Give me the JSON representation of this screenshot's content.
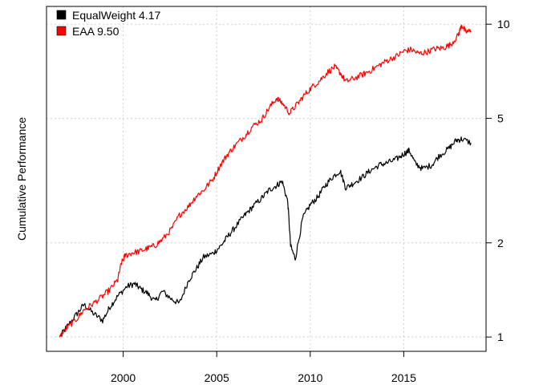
{
  "chart_data": {
    "type": "line",
    "ylabel": "Cumulative Performance",
    "xlabel": "",
    "title": "",
    "y_scale": "log",
    "xlim": [
      1995.9,
      2019.4
    ],
    "ylim": [
      0.9,
      11.4
    ],
    "x_ticks": [
      2000,
      2005,
      2010,
      2015
    ],
    "x_tick_labels": [
      "2000",
      "2005",
      "2010",
      "2015"
    ],
    "y_ticks": [
      1,
      2,
      5,
      10
    ],
    "y_tick_labels": [
      "1",
      "2",
      "5",
      "10"
    ],
    "y_axis_side": "right",
    "grid": true,
    "legend_position": "top-left",
    "series": [
      {
        "name": "EqualWeight",
        "legend_label": "EqualWeight 4.17",
        "color": "#000000",
        "final_value": 4.17,
        "x": [
          1996.6,
          1997.0,
          1997.5,
          1997.9,
          1998.4,
          1998.9,
          1999.3,
          1999.7,
          2000.2,
          2000.6,
          2000.9,
          2001.3,
          2001.7,
          2002.1,
          2002.6,
          2003.0,
          2003.5,
          2003.9,
          2004.3,
          2004.8,
          2005.2,
          2005.6,
          2006.0,
          2006.5,
          2006.9,
          2007.4,
          2007.8,
          2008.2,
          2008.5,
          2008.8,
          2008.95,
          2009.2,
          2009.6,
          2010.0,
          2010.4,
          2010.8,
          2011.2,
          2011.6,
          2011.9,
          2012.3,
          2012.8,
          2013.2,
          2013.7,
          2014.1,
          2014.6,
          2015.0,
          2015.3,
          2015.6,
          2016.0,
          2016.5,
          2016.9,
          2017.4,
          2017.8,
          2018.1,
          2018.6
        ],
        "y": [
          1.0,
          1.08,
          1.18,
          1.27,
          1.19,
          1.13,
          1.25,
          1.35,
          1.45,
          1.48,
          1.43,
          1.38,
          1.3,
          1.4,
          1.32,
          1.28,
          1.52,
          1.65,
          1.8,
          1.85,
          1.95,
          2.1,
          2.25,
          2.45,
          2.6,
          2.78,
          2.95,
          3.05,
          3.15,
          2.7,
          1.95,
          1.78,
          2.4,
          2.65,
          2.8,
          3.05,
          3.25,
          3.4,
          3.0,
          3.1,
          3.25,
          3.4,
          3.55,
          3.6,
          3.7,
          3.85,
          3.95,
          3.6,
          3.45,
          3.55,
          3.8,
          4.0,
          4.25,
          4.3,
          4.17
        ]
      },
      {
        "name": "EAA",
        "legend_label": "EAA 9.50",
        "color": "#ff0000",
        "final_value": 9.5,
        "x": [
          1996.6,
          1997.0,
          1997.5,
          1997.9,
          1998.4,
          1998.9,
          1999.3,
          1999.7,
          1999.9,
          2000.1,
          2000.5,
          2000.9,
          2001.3,
          2001.7,
          2002.1,
          2002.6,
          2003.0,
          2003.5,
          2003.9,
          2004.3,
          2004.8,
          2005.2,
          2005.6,
          2006.0,
          2006.5,
          2006.9,
          2007.4,
          2007.8,
          2008.2,
          2008.5,
          2008.9,
          2009.3,
          2009.7,
          2010.1,
          2010.5,
          2010.9,
          2011.3,
          2011.6,
          2011.9,
          2012.3,
          2012.8,
          2013.2,
          2013.7,
          2014.1,
          2014.6,
          2015.0,
          2015.4,
          2015.8,
          2016.2,
          2016.7,
          2017.1,
          2017.5,
          2017.9,
          2018.1,
          2018.3,
          2018.6
        ],
        "y": [
          1.0,
          1.07,
          1.14,
          1.22,
          1.28,
          1.35,
          1.42,
          1.52,
          1.72,
          1.82,
          1.86,
          1.88,
          1.92,
          1.96,
          2.05,
          2.22,
          2.45,
          2.62,
          2.82,
          2.95,
          3.2,
          3.55,
          3.85,
          4.1,
          4.4,
          4.7,
          4.95,
          5.4,
          5.8,
          5.6,
          5.2,
          5.55,
          5.95,
          6.3,
          6.6,
          7.0,
          7.3,
          7.0,
          6.55,
          6.7,
          6.9,
          7.1,
          7.4,
          7.65,
          7.9,
          8.2,
          8.3,
          8.05,
          8.15,
          8.35,
          8.4,
          8.6,
          9.2,
          9.95,
          9.45,
          9.5
        ]
      }
    ]
  }
}
